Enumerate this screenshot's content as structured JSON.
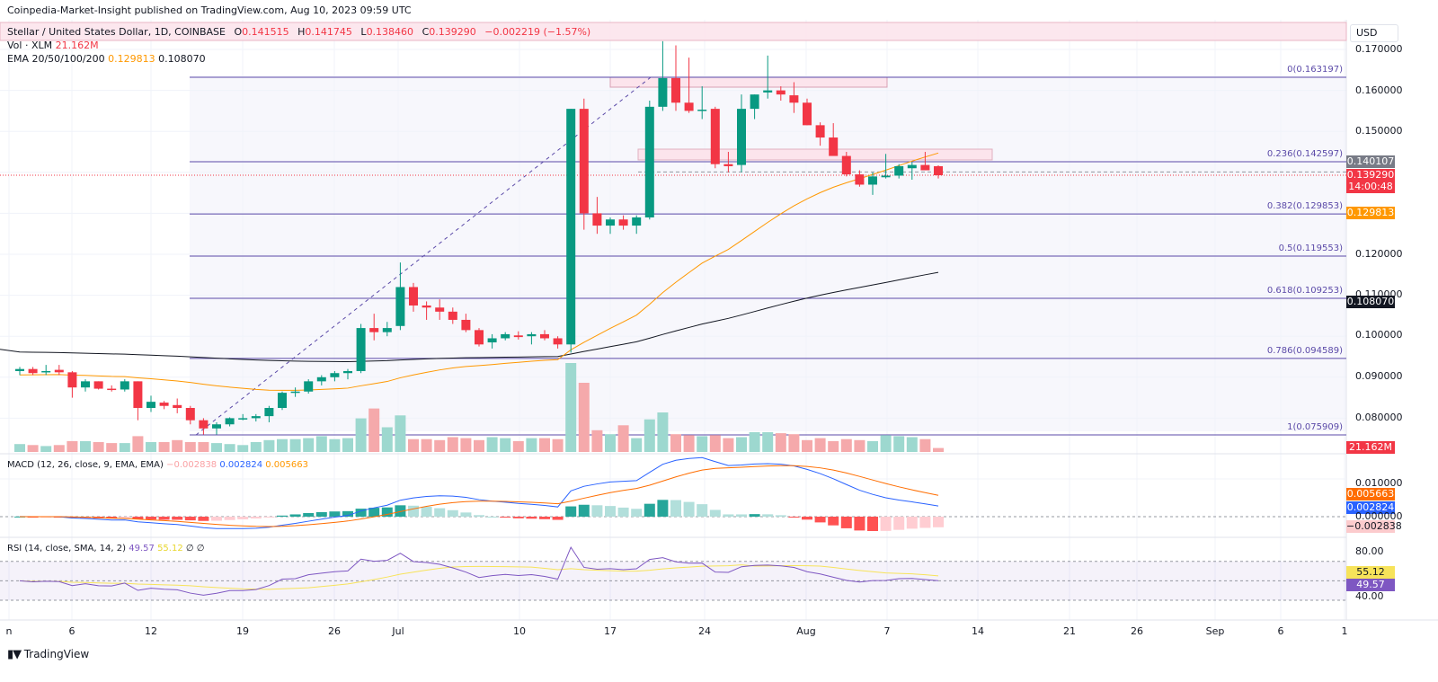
{
  "header": {
    "published": "Coinpedia-Market-Insight published on TradingView.com, Aug 10, 2023 09:59 UTC",
    "symbol": "Stellar / United States Dollar, 1D, COINBASE",
    "o_label": "O",
    "o_value": "0.141515",
    "h_label": "H",
    "h_value": "0.141745",
    "l_label": "L",
    "l_value": "0.138460",
    "c_label": "C",
    "c_value": "0.139290",
    "change": "−0.002219 (−1.57%)"
  },
  "legend": {
    "vol_label": "Vol · XLM",
    "vol_value": "21.162M",
    "ema_label": "EMA 20/50/100/200",
    "ema_value1": "0.129813",
    "ema_value2": "0.108070",
    "macd_label": "MACD (12, 26, close, 9, EMA, EMA)",
    "macd_hist": "−0.002838",
    "macd_line": "0.002824",
    "macd_signal": "0.005663",
    "rsi_label": "RSI (14, close, SMA, 14, 2)",
    "rsi_value": "49.57",
    "rsi_ma": "55.12",
    "rsi_extra": "∅ ∅"
  },
  "price_axis": {
    "currency": "USD",
    "ticks": [
      "0.170000",
      "0.160000",
      "0.150000",
      "0.140000",
      "0.130000",
      "0.120000",
      "0.110000",
      "0.100000",
      "0.090000",
      "0.080000"
    ],
    "tags": {
      "last_high": "0.140107",
      "last_price": "0.139290",
      "countdown": "14:00:48",
      "ema50": "0.129813",
      "ema200": "0.108070",
      "volume": "21.162M"
    }
  },
  "macd_axis": {
    "ticks": [
      "0.010000",
      "0.000000"
    ],
    "signal_tag": "0.005663",
    "macd_tag": "0.002824",
    "hist_tag": "−0.002838"
  },
  "rsi_axis": {
    "ticks": [
      "80.00",
      "40.00"
    ],
    "ma_tag": "55.12",
    "rsi_tag": "49.57"
  },
  "time_axis": {
    "labels": [
      {
        "text": "n",
        "x": 10
      },
      {
        "text": "6",
        "x": 80
      },
      {
        "text": "12",
        "x": 168
      },
      {
        "text": "19",
        "x": 270
      },
      {
        "text": "26",
        "x": 372
      },
      {
        "text": "Jul",
        "x": 443
      },
      {
        "text": "10",
        "x": 578
      },
      {
        "text": "17",
        "x": 679
      },
      {
        "text": "24",
        "x": 784
      },
      {
        "text": "Aug",
        "x": 897
      },
      {
        "text": "7",
        "x": 987
      },
      {
        "text": "14",
        "x": 1088
      },
      {
        "text": "21",
        "x": 1190
      },
      {
        "text": "26",
        "x": 1265
      },
      {
        "text": "Sep",
        "x": 1352
      },
      {
        "text": "6",
        "x": 1425
      },
      {
        "text": "1",
        "x": 1496
      }
    ]
  },
  "fib_levels": [
    {
      "label": "0(0.163197)",
      "price": 0.163197
    },
    {
      "label": "0.236(0.142597)",
      "price": 0.142597
    },
    {
      "label": "0.382(0.129853)",
      "price": 0.129853
    },
    {
      "label": "0.5(0.119553)",
      "price": 0.119553
    },
    {
      "label": "0.618(0.109253)",
      "price": 0.109253
    },
    {
      "label": "0.786(0.094589)",
      "price": 0.094589
    },
    {
      "label": "1(0.075909)",
      "price": 0.075909
    }
  ],
  "branding": {
    "logo_text": "TradingView"
  },
  "colors": {
    "up": "#089981",
    "down": "#f23645",
    "ema50": "#ff9800",
    "ema200": "#131722",
    "fib": "#5b4aa8",
    "macd": "#2962ff",
    "signal": "#ff6d00",
    "rsi": "#7e57c2",
    "rsi_ma": "#f7e35a"
  },
  "chart_data": {
    "type": "candlestick",
    "title": "Stellar / United States Dollar, 1D, COINBASE",
    "xlabel": "",
    "ylabel": "USD",
    "ylim": [
      0.074,
      0.175
    ],
    "x_start": "2023-06-01",
    "x_end": "2023-08-10",
    "candles": [
      [
        0.0915,
        0.0925,
        0.0905,
        0.092
      ],
      [
        0.092,
        0.0925,
        0.0905,
        0.091
      ],
      [
        0.0912,
        0.093,
        0.0905,
        0.0915
      ],
      [
        0.0918,
        0.093,
        0.0905,
        0.0912
      ],
      [
        0.0912,
        0.0915,
        0.085,
        0.0875
      ],
      [
        0.0875,
        0.0895,
        0.0865,
        0.089
      ],
      [
        0.089,
        0.089,
        0.087,
        0.0872
      ],
      [
        0.0872,
        0.088,
        0.0865,
        0.087
      ],
      [
        0.087,
        0.0895,
        0.0865,
        0.089
      ],
      [
        0.089,
        0.089,
        0.0795,
        0.0825
      ],
      [
        0.0825,
        0.0855,
        0.0815,
        0.084
      ],
      [
        0.0838,
        0.0842,
        0.0822,
        0.083
      ],
      [
        0.0832,
        0.0848,
        0.0812,
        0.0825
      ],
      [
        0.0825,
        0.083,
        0.0785,
        0.0795
      ],
      [
        0.0795,
        0.08,
        0.076,
        0.0775
      ],
      [
        0.0775,
        0.079,
        0.076,
        0.0785
      ],
      [
        0.0785,
        0.0802,
        0.078,
        0.08
      ],
      [
        0.08,
        0.081,
        0.0795,
        0.08
      ],
      [
        0.08,
        0.081,
        0.0792,
        0.0805
      ],
      [
        0.0805,
        0.083,
        0.079,
        0.0825
      ],
      [
        0.0825,
        0.0865,
        0.082,
        0.0862
      ],
      [
        0.0865,
        0.0875,
        0.0852,
        0.0865
      ],
      [
        0.0865,
        0.0895,
        0.086,
        0.089
      ],
      [
        0.089,
        0.0905,
        0.088,
        0.09
      ],
      [
        0.09,
        0.0915,
        0.089,
        0.091
      ],
      [
        0.091,
        0.092,
        0.0895,
        0.0915
      ],
      [
        0.0915,
        0.103,
        0.091,
        0.102
      ],
      [
        0.102,
        0.1055,
        0.099,
        0.101
      ],
      [
        0.101,
        0.1035,
        0.1,
        0.102
      ],
      [
        0.1025,
        0.118,
        0.1015,
        0.112
      ],
      [
        0.112,
        0.113,
        0.106,
        0.1075
      ],
      [
        0.1075,
        0.1085,
        0.104,
        0.107
      ],
      [
        0.107,
        0.109,
        0.104,
        0.106
      ],
      [
        0.106,
        0.107,
        0.103,
        0.104
      ],
      [
        0.104,
        0.1055,
        0.101,
        0.1015
      ],
      [
        0.1015,
        0.102,
        0.0975,
        0.098
      ],
      [
        0.0985,
        0.1005,
        0.097,
        0.0995
      ],
      [
        0.0995,
        0.101,
        0.099,
        0.1005
      ],
      [
        0.1002,
        0.1012,
        0.0992,
        0.0998
      ],
      [
        0.1,
        0.101,
        0.098,
        0.1005
      ],
      [
        0.1005,
        0.1015,
        0.099,
        0.0995
      ],
      [
        0.0995,
        0.1,
        0.097,
        0.098
      ],
      [
        0.098,
        0.1555,
        0.096,
        0.1555
      ],
      [
        0.1555,
        0.158,
        0.126,
        0.13
      ],
      [
        0.13,
        0.134,
        0.125,
        0.127
      ],
      [
        0.127,
        0.129,
        0.125,
        0.1285
      ],
      [
        0.1285,
        0.1295,
        0.126,
        0.127
      ],
      [
        0.127,
        0.1295,
        0.125,
        0.129
      ],
      [
        0.129,
        0.1575,
        0.1285,
        0.156
      ],
      [
        0.156,
        0.172,
        0.155,
        0.163
      ],
      [
        0.163,
        0.171,
        0.155,
        0.157
      ],
      [
        0.157,
        0.168,
        0.1545,
        0.155
      ],
      [
        0.155,
        0.161,
        0.153,
        0.1553
      ],
      [
        0.1555,
        0.156,
        0.141,
        0.142
      ],
      [
        0.142,
        0.145,
        0.14,
        0.1415
      ],
      [
        0.1418,
        0.159,
        0.14,
        0.1555
      ],
      [
        0.1555,
        0.159,
        0.153,
        0.159
      ],
      [
        0.1595,
        0.1685,
        0.158,
        0.16
      ],
      [
        0.16,
        0.161,
        0.1575,
        0.159
      ],
      [
        0.1588,
        0.162,
        0.1545,
        0.157
      ],
      [
        0.157,
        0.158,
        0.1515,
        0.1515
      ],
      [
        0.1515,
        0.1522,
        0.1465,
        0.1485
      ],
      [
        0.1485,
        0.152,
        0.1445,
        0.144
      ],
      [
        0.144,
        0.145,
        0.139,
        0.1395
      ],
      [
        0.1395,
        0.1405,
        0.1365,
        0.137
      ],
      [
        0.137,
        0.14,
        0.1345,
        0.139
      ],
      [
        0.1388,
        0.1445,
        0.1385,
        0.1392
      ],
      [
        0.1392,
        0.142,
        0.1385,
        0.1415
      ],
      [
        0.141,
        0.1425,
        0.1382,
        0.1418
      ],
      [
        0.1418,
        0.145,
        0.1405,
        0.1405
      ],
      [
        0.1415,
        0.1417,
        0.1385,
        0.1393
      ]
    ],
    "volume": [
      8,
      7,
      6,
      7,
      11,
      11,
      10,
      9,
      9,
      16,
      10,
      10,
      12,
      10,
      10,
      9,
      8,
      7,
      10,
      12,
      13,
      13,
      14,
      16,
      13,
      14,
      34,
      44,
      25,
      37,
      13,
      13,
      12,
      15,
      14,
      12,
      15,
      14,
      11,
      14,
      14,
      13,
      90,
      70,
      22,
      18,
      27,
      14,
      33,
      40,
      18,
      17,
      16,
      17,
      14,
      15,
      20,
      20,
      19,
      18,
      12,
      14,
      11,
      13,
      12,
      11,
      17,
      16,
      15,
      13,
      4
    ],
    "ema50": "rises from ~0.0885 (Jun 19) to 0.129813 (Aug 10)",
    "ema200": "flat ~0.096 through July, rises to 0.108070 (Aug 10)",
    "fib_retracement": {
      "high": 0.163197,
      "low": 0.075909
    }
  }
}
